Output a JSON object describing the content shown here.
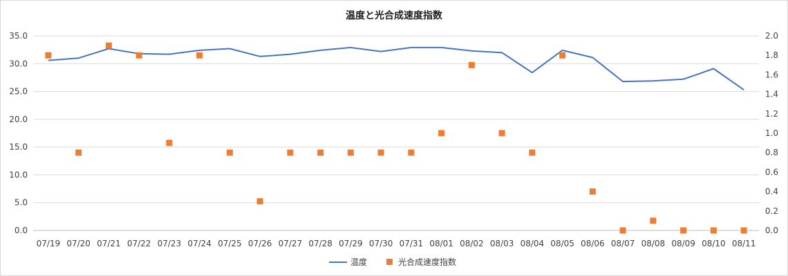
{
  "chart_data": {
    "type": "line",
    "title": "温度と光合成速度指数",
    "categories": [
      "07/19",
      "07/20",
      "07/21",
      "07/22",
      "07/23",
      "07/24",
      "07/25",
      "07/26",
      "07/27",
      "07/28",
      "07/29",
      "07/30",
      "07/31",
      "08/01",
      "08/02",
      "08/03",
      "08/04",
      "08/05",
      "08/06",
      "08/07",
      "08/08",
      "08/09",
      "08/10",
      "08/11"
    ],
    "y_left": {
      "min": 0,
      "max": 35,
      "step": 5,
      "ticks": [
        "0.0",
        "5.0",
        "10.0",
        "15.0",
        "20.0",
        "25.0",
        "30.0",
        "35.0"
      ]
    },
    "y_right": {
      "min": 0,
      "max": 2.0,
      "step": 0.2,
      "ticks": [
        "0.0",
        "0.2",
        "0.4",
        "0.6",
        "0.8",
        "1.0",
        "1.2",
        "1.4",
        "1.6",
        "1.8",
        "2.0"
      ]
    },
    "grid": true,
    "legend_position": "bottom",
    "series": [
      {
        "name": "温度",
        "kind": "line",
        "axis": "left",
        "color": "#4472c4",
        "values": [
          30.6,
          31.0,
          32.7,
          31.8,
          31.7,
          32.4,
          32.7,
          31.3,
          31.7,
          32.4,
          32.9,
          32.2,
          32.9,
          32.9,
          32.3,
          32.0,
          28.4,
          32.4,
          31.1,
          26.8,
          26.9,
          27.2,
          29.1,
          25.3
        ]
      },
      {
        "name": "光合成速度指数",
        "kind": "scatter",
        "axis": "right",
        "color": "#ed7d31",
        "values": [
          1.8,
          0.8,
          1.9,
          1.8,
          0.9,
          1.8,
          0.8,
          0.3,
          0.8,
          0.8,
          0.8,
          0.8,
          0.8,
          1.0,
          1.7,
          1.0,
          0.8,
          1.8,
          0.4,
          0.0,
          0.1,
          0.0,
          0.0,
          0.0
        ]
      }
    ]
  }
}
